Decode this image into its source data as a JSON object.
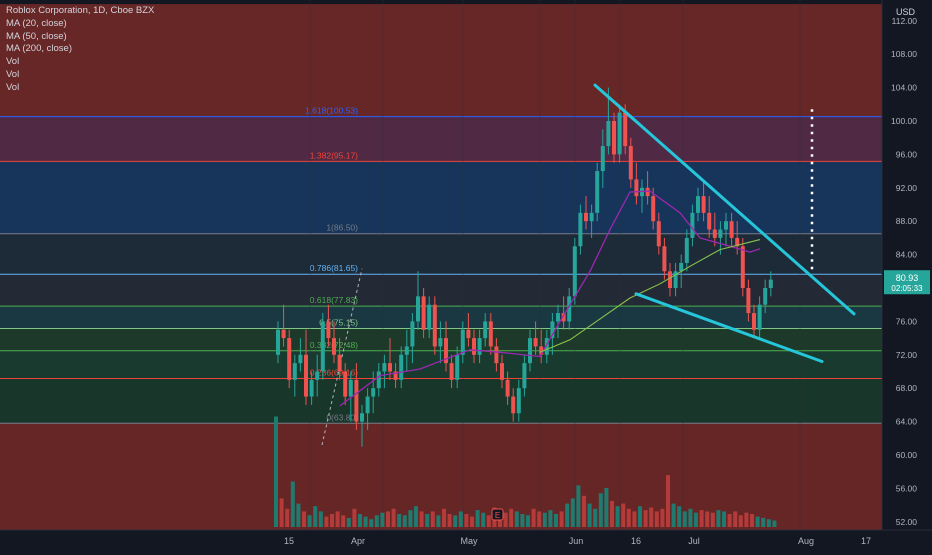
{
  "header": {
    "symbol_line": "Roblox Corporation, 1D, Cboe BZX",
    "indicators": [
      "MA (20, close)",
      "MA (50, close)",
      "MA (200, close)",
      "Vol",
      "Vol",
      "Vol"
    ],
    "currency": "USD"
  },
  "price_badge": {
    "price": "80.93",
    "countdown": "02:05:33",
    "color": "#26a69a"
  },
  "colors": {
    "background": "#131722",
    "up": "#26a69a",
    "down": "#ef5350",
    "ma_purple": "#9c27b0",
    "ma_green": "#8bc34a",
    "trendline": "#26c6da"
  },
  "chart_data": {
    "type": "candlestick",
    "instrument": "Roblox Corporation",
    "interval": "1D",
    "exchange": "Cboe BZX",
    "y_axis": {
      "ticks": [
        52,
        56,
        60,
        64,
        68,
        72,
        76,
        80,
        84,
        88,
        92,
        96,
        100,
        104,
        108,
        112
      ],
      "labels": [
        "52.00",
        "56.00",
        "60.00",
        "64.00",
        "68.00",
        "72.00",
        "76.00",
        "80.00",
        "84.00",
        "88.00",
        "92.00",
        "96.00",
        "100.00",
        "104.00",
        "108.00",
        "112.00"
      ],
      "range": [
        51,
        114
      ]
    },
    "x_axis": {
      "labels": [
        "15",
        "Apr",
        "May",
        "Jun",
        "16",
        "Jul",
        "Aug",
        "17"
      ]
    },
    "fibonacci": [
      {
        "label": "1.618(100.53)",
        "level": 1.618,
        "price": 100.53,
        "color": "#2962ff"
      },
      {
        "label": "1.382(95.17)",
        "level": 1.382,
        "price": 95.17,
        "color": "#f44336"
      },
      {
        "label": "1(86.50)",
        "level": 1,
        "price": 86.5,
        "color": "#787b86"
      },
      {
        "label": "0.786(81.65)",
        "level": 0.786,
        "price": 81.65,
        "color": "#64b5f6"
      },
      {
        "label": "0.618(77.83)",
        "level": 0.618,
        "price": 77.83,
        "color": "#4caf50"
      },
      {
        "label": "0.5(75.15)",
        "level": 0.5,
        "price": 75.15,
        "color": "#81c784"
      },
      {
        "label": "0.382(72.48)",
        "level": 0.382,
        "price": 72.48,
        "color": "#4caf50"
      },
      {
        "label": "0.236(69.16)",
        "level": 0.236,
        "price": 69.16,
        "color": "#f44336"
      },
      {
        "label": "0(63.80)",
        "level": 0,
        "price": 63.8,
        "color": "#787b86"
      }
    ],
    "fib_band_colors": [
      "#6d2828",
      "#532a47",
      "#17375e",
      "#1e2b3a",
      "#242b38",
      "#1a3a44",
      "#1d3b2b",
      "#193d30",
      "#19382c",
      "#6b2727",
      "#131722"
    ],
    "candles": [
      {
        "o": 72,
        "h": 76,
        "l": 71,
        "c": 75
      },
      {
        "o": 75,
        "h": 78,
        "l": 73,
        "c": 74
      },
      {
        "o": 74,
        "h": 75,
        "l": 68,
        "c": 69
      },
      {
        "o": 69,
        "h": 72,
        "l": 67,
        "c": 71
      },
      {
        "o": 71,
        "h": 74,
        "l": 70,
        "c": 72
      },
      {
        "o": 72,
        "h": 75,
        "l": 66,
        "c": 67
      },
      {
        "o": 67,
        "h": 70,
        "l": 66,
        "c": 69
      },
      {
        "o": 69,
        "h": 72,
        "l": 67,
        "c": 70
      },
      {
        "o": 70,
        "h": 77,
        "l": 69,
        "c": 76
      },
      {
        "o": 76,
        "h": 78,
        "l": 73,
        "c": 74
      },
      {
        "o": 74,
        "h": 76,
        "l": 71,
        "c": 72
      },
      {
        "o": 72,
        "h": 74,
        "l": 69,
        "c": 70
      },
      {
        "o": 70,
        "h": 71,
        "l": 66,
        "c": 67
      },
      {
        "o": 67,
        "h": 70,
        "l": 64,
        "c": 69
      },
      {
        "o": 69,
        "h": 71,
        "l": 63,
        "c": 64
      },
      {
        "o": 64,
        "h": 66,
        "l": 61,
        "c": 65
      },
      {
        "o": 65,
        "h": 68,
        "l": 63,
        "c": 67
      },
      {
        "o": 67,
        "h": 70,
        "l": 65,
        "c": 68
      },
      {
        "o": 68,
        "h": 71,
        "l": 67,
        "c": 70
      },
      {
        "o": 70,
        "h": 72,
        "l": 68,
        "c": 71
      },
      {
        "o": 71,
        "h": 74,
        "l": 69,
        "c": 70
      },
      {
        "o": 70,
        "h": 71,
        "l": 68,
        "c": 69
      },
      {
        "o": 69,
        "h": 73,
        "l": 68,
        "c": 72
      },
      {
        "o": 72,
        "h": 75,
        "l": 70,
        "c": 73
      },
      {
        "o": 73,
        "h": 77,
        "l": 71,
        "c": 76
      },
      {
        "o": 76,
        "h": 82,
        "l": 75,
        "c": 79
      },
      {
        "o": 79,
        "h": 80,
        "l": 74,
        "c": 75
      },
      {
        "o": 75,
        "h": 79,
        "l": 74,
        "c": 78
      },
      {
        "o": 78,
        "h": 79,
        "l": 72,
        "c": 73
      },
      {
        "o": 73,
        "h": 76,
        "l": 71,
        "c": 74
      },
      {
        "o": 74,
        "h": 76,
        "l": 70,
        "c": 71
      },
      {
        "o": 71,
        "h": 72,
        "l": 68,
        "c": 69
      },
      {
        "o": 69,
        "h": 73,
        "l": 68,
        "c": 72
      },
      {
        "o": 72,
        "h": 76,
        "l": 71,
        "c": 75
      },
      {
        "o": 75,
        "h": 77,
        "l": 73,
        "c": 74
      },
      {
        "o": 74,
        "h": 75,
        "l": 71,
        "c": 72
      },
      {
        "o": 72,
        "h": 75,
        "l": 71,
        "c": 74
      },
      {
        "o": 74,
        "h": 77,
        "l": 73,
        "c": 76
      },
      {
        "o": 76,
        "h": 77,
        "l": 72,
        "c": 73
      },
      {
        "o": 73,
        "h": 74,
        "l": 70,
        "c": 71
      },
      {
        "o": 71,
        "h": 72,
        "l": 68,
        "c": 69
      },
      {
        "o": 69,
        "h": 70,
        "l": 66,
        "c": 67
      },
      {
        "o": 67,
        "h": 68,
        "l": 64,
        "c": 65
      },
      {
        "o": 65,
        "h": 69,
        "l": 64,
        "c": 68
      },
      {
        "o": 68,
        "h": 72,
        "l": 67,
        "c": 71
      },
      {
        "o": 71,
        "h": 75,
        "l": 70,
        "c": 74
      },
      {
        "o": 74,
        "h": 76,
        "l": 72,
        "c": 73
      },
      {
        "o": 73,
        "h": 75,
        "l": 71,
        "c": 72
      },
      {
        "o": 72,
        "h": 75,
        "l": 71,
        "c": 74
      },
      {
        "o": 74,
        "h": 77,
        "l": 72,
        "c": 76
      },
      {
        "o": 76,
        "h": 78,
        "l": 74,
        "c": 77
      },
      {
        "o": 77,
        "h": 79,
        "l": 75,
        "c": 76
      },
      {
        "o": 76,
        "h": 80,
        "l": 75,
        "c": 79
      },
      {
        "o": 79,
        "h": 86,
        "l": 78,
        "c": 85
      },
      {
        "o": 85,
        "h": 90,
        "l": 84,
        "c": 89
      },
      {
        "o": 89,
        "h": 91,
        "l": 87,
        "c": 88
      },
      {
        "o": 88,
        "h": 90,
        "l": 86,
        "c": 89
      },
      {
        "o": 89,
        "h": 95,
        "l": 88,
        "c": 94
      },
      {
        "o": 94,
        "h": 99,
        "l": 92,
        "c": 97
      },
      {
        "o": 97,
        "h": 104,
        "l": 96,
        "c": 100
      },
      {
        "o": 100,
        "h": 101,
        "l": 95,
        "c": 96
      },
      {
        "o": 96,
        "h": 102,
        "l": 95,
        "c": 101
      },
      {
        "o": 101,
        "h": 102,
        "l": 96,
        "c": 97
      },
      {
        "o": 97,
        "h": 98,
        "l": 92,
        "c": 93
      },
      {
        "o": 93,
        "h": 95,
        "l": 90,
        "c": 91
      },
      {
        "o": 91,
        "h": 93,
        "l": 89,
        "c": 92
      },
      {
        "o": 92,
        "h": 94,
        "l": 90,
        "c": 91
      },
      {
        "o": 91,
        "h": 92,
        "l": 87,
        "c": 88
      },
      {
        "o": 88,
        "h": 89,
        "l": 84,
        "c": 85
      },
      {
        "o": 85,
        "h": 86,
        "l": 81,
        "c": 82
      },
      {
        "o": 82,
        "h": 83,
        "l": 79,
        "c": 80
      },
      {
        "o": 80,
        "h": 83,
        "l": 79,
        "c": 82
      },
      {
        "o": 82,
        "h": 84,
        "l": 80,
        "c": 83
      },
      {
        "o": 83,
        "h": 87,
        "l": 82,
        "c": 86
      },
      {
        "o": 86,
        "h": 90,
        "l": 85,
        "c": 89
      },
      {
        "o": 89,
        "h": 92,
        "l": 88,
        "c": 91
      },
      {
        "o": 91,
        "h": 93,
        "l": 88,
        "c": 89
      },
      {
        "o": 89,
        "h": 91,
        "l": 86,
        "c": 87
      },
      {
        "o": 87,
        "h": 89,
        "l": 85,
        "c": 86
      },
      {
        "o": 86,
        "h": 88,
        "l": 84,
        "c": 87
      },
      {
        "o": 87,
        "h": 89,
        "l": 85,
        "c": 88
      },
      {
        "o": 88,
        "h": 89,
        "l": 85,
        "c": 86
      },
      {
        "o": 86,
        "h": 88,
        "l": 84,
        "c": 85
      },
      {
        "o": 85,
        "h": 86,
        "l": 79,
        "c": 80
      },
      {
        "o": 80,
        "h": 81,
        "l": 76,
        "c": 77
      },
      {
        "o": 77,
        "h": 78,
        "l": 74,
        "c": 75
      },
      {
        "o": 75,
        "h": 79,
        "l": 74,
        "c": 78
      },
      {
        "o": 78,
        "h": 81,
        "l": 77,
        "c": 80
      },
      {
        "o": 80,
        "h": 82,
        "l": 79,
        "c": 81
      }
    ],
    "volume": [
      85,
      22,
      14,
      35,
      18,
      12,
      9,
      16,
      12,
      8,
      10,
      12,
      9,
      7,
      14,
      10,
      8,
      6,
      9,
      11,
      12,
      14,
      10,
      9,
      13,
      16,
      12,
      10,
      12,
      9,
      14,
      10,
      9,
      12,
      10,
      8,
      13,
      11,
      9,
      15,
      13,
      11,
      14,
      12,
      10,
      9,
      14,
      12,
      11,
      13,
      10,
      12,
      18,
      22,
      32,
      24,
      18,
      14,
      26,
      30,
      20,
      16,
      18,
      14,
      12,
      16,
      13,
      15,
      12,
      14,
      40,
      18,
      16,
      12,
      14,
      11,
      13,
      12,
      11,
      13,
      12,
      10,
      12,
      9,
      11,
      10,
      8,
      7,
      6,
      5
    ],
    "ma_purple": [
      [
        340,
        65.9
      ],
      [
        380,
        69.5
      ],
      [
        420,
        70.3
      ],
      [
        470,
        72.6
      ],
      [
        500,
        72.3
      ],
      [
        540,
        71.8
      ],
      [
        560,
        76
      ],
      [
        590,
        82
      ],
      [
        610,
        87
      ],
      [
        630,
        91.5
      ],
      [
        650,
        91.6
      ],
      [
        680,
        89
      ],
      [
        700,
        86
      ],
      [
        730,
        85
      ],
      [
        750,
        84.3
      ],
      [
        760,
        84.7
      ]
    ],
    "ma_green": [
      [
        540,
        72.3
      ],
      [
        570,
        73.8
      ],
      [
        600,
        76.3
      ],
      [
        630,
        78.8
      ],
      [
        660,
        80.5
      ],
      [
        690,
        82.6
      ],
      [
        720,
        84.6
      ],
      [
        750,
        85.5
      ],
      [
        760,
        85.8
      ]
    ],
    "trendlines": [
      {
        "p1": {
          "x": 595,
          "price": 104.3
        },
        "p2": {
          "x": 854,
          "price": 76.9
        }
      },
      {
        "p1": {
          "x": 636,
          "price": 79.3
        },
        "p2": {
          "x": 822,
          "price": 71.2
        }
      }
    ],
    "target_dotted": {
      "x": 812,
      "from": 82.1,
      "to": 101.4
    },
    "fib_dotted": {
      "from": {
        "x": 322,
        "price": 61.2
      },
      "to": {
        "x": 362,
        "price": 82.3
      }
    }
  }
}
